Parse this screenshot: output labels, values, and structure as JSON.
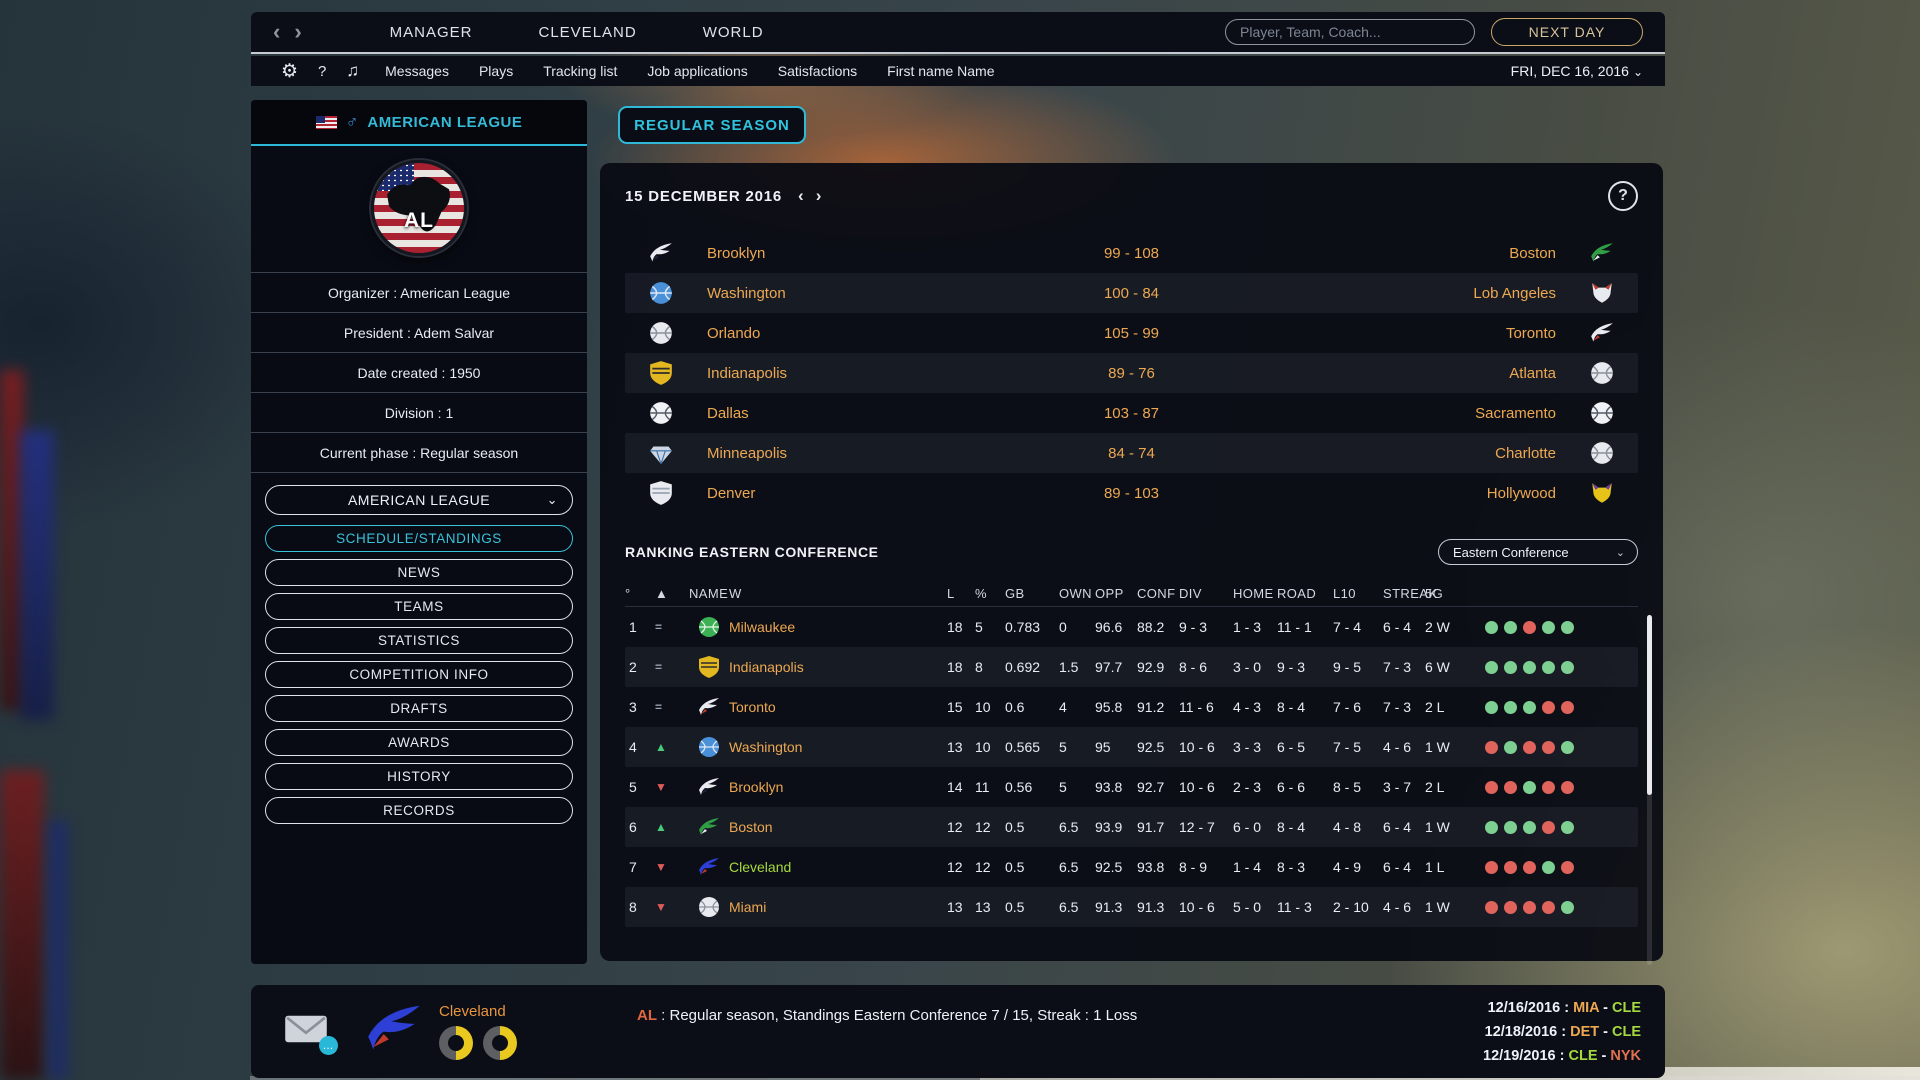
{
  "icons": {
    "back": "‹",
    "forward": "›",
    "gear": "⚙",
    "help": "?",
    "music": "♫",
    "chevron_down": "⌄",
    "male": "♂"
  },
  "colors": {
    "accent_cyan": "#39c3da",
    "orange": "#eda851",
    "green": "#a6d93e",
    "red_team": "#e2714f",
    "dot_green": "#7ecf92",
    "dot_red": "#e0635c",
    "gold": "#d8c49a"
  },
  "top_nav": {
    "items": [
      "MANAGER",
      "CLEVELAND",
      "WORLD"
    ],
    "search_placeholder": "Player, Team, Coach...",
    "next_day_label": "NEXT DAY"
  },
  "menu_bar": {
    "items": [
      "Messages",
      "Plays",
      "Tracking list",
      "Job applications",
      "Satisfactions",
      "First name Name"
    ],
    "date_label": "FRI, DEC 16, 2016"
  },
  "sidebar": {
    "league_title": "AMERICAN LEAGUE",
    "logo_text": "AL",
    "info_rows": [
      "Organizer : American League",
      "President : Adem Salvar",
      "Date created : 1950",
      "Division : 1",
      "Current phase : Regular season"
    ],
    "dropdown_value": "AMERICAN LEAGUE",
    "menu_items": [
      {
        "label": "SCHEDULE/STANDINGS",
        "active": true
      },
      {
        "label": "NEWS",
        "active": false
      },
      {
        "label": "TEAMS",
        "active": false
      },
      {
        "label": "STATISTICS",
        "active": false
      },
      {
        "label": "COMPETITION INFO",
        "active": false
      },
      {
        "label": "DRAFTS",
        "active": false
      },
      {
        "label": "AWARDS",
        "active": false
      },
      {
        "label": "HISTORY",
        "active": false
      },
      {
        "label": "RECORDS",
        "active": false
      }
    ]
  },
  "main": {
    "tab_label": "REGULAR SEASON",
    "date_header": "15 DECEMBER 2016",
    "results": [
      {
        "home": "Brooklyn",
        "score": "99 - 108",
        "away": "Boston",
        "home_logo": {
          "type": "bird",
          "c1": "#e8eaf0",
          "c2": "#1c2340"
        },
        "away_logo": {
          "type": "bird",
          "c1": "#2f9e44",
          "c2": "#e8eaf0"
        }
      },
      {
        "home": "Washington",
        "score": "100 - 84",
        "away": "Lob Angeles",
        "home_logo": {
          "type": "ball",
          "c1": "#4a90d9",
          "c2": "#dfe8f5"
        },
        "away_logo": {
          "type": "fox",
          "c1": "#e8eaf0",
          "c2": "#c0392b"
        }
      },
      {
        "home": "Orlando",
        "score": "105 - 99",
        "away": "Toronto",
        "home_logo": {
          "type": "ball",
          "c1": "#e8eaf0",
          "c2": "#8a9099"
        },
        "away_logo": {
          "type": "bird",
          "c1": "#e8eaf0",
          "c2": "#c0392b"
        }
      },
      {
        "home": "Indianapolis",
        "score": "89 - 76",
        "away": "Atlanta",
        "home_logo": {
          "type": "shield",
          "c1": "#e3b71f",
          "c2": "#2c2c2c"
        },
        "away_logo": {
          "type": "ball",
          "c1": "#e8eaf0",
          "c2": "#8a9099"
        }
      },
      {
        "home": "Dallas",
        "score": "103 - 87",
        "away": "Sacramento",
        "home_logo": {
          "type": "ball",
          "c1": "#f0f2f5",
          "c2": "#555b66"
        },
        "away_logo": {
          "type": "ball",
          "c1": "#f0f2f5",
          "c2": "#555b66"
        }
      },
      {
        "home": "Minneapolis",
        "score": "84 - 74",
        "away": "Charlotte",
        "home_logo": {
          "type": "diamond",
          "c1": "#cdd6e4",
          "c2": "#3a6ea5"
        },
        "away_logo": {
          "type": "ball",
          "c1": "#e8eaf0",
          "c2": "#8a9099"
        }
      },
      {
        "home": "Denver",
        "score": "89 - 103",
        "away": "Hollywood",
        "home_logo": {
          "type": "shield",
          "c1": "#e8eaf0",
          "c2": "#9aa4b5"
        },
        "away_logo": {
          "type": "fox",
          "c1": "#e6c319",
          "c2": "#6a3d9e"
        }
      }
    ],
    "ranking_title": "RANKING EASTERN CONFERENCE",
    "conference_dropdown": "Eastern Conference",
    "table": {
      "headers": [
        "°",
        "▲",
        "NAME",
        "W",
        "L",
        "%",
        "GB",
        "OWN",
        "OPP",
        "CONF",
        "DIV",
        "HOME",
        "ROAD",
        "L10",
        "STREAK",
        "5G"
      ],
      "rows": [
        {
          "rank": "1",
          "move": "same",
          "name": "Milwaukee",
          "name_color": "#eda851",
          "logo": {
            "type": "ball",
            "c1": "#3cb054",
            "c2": "#e8f5ea"
          },
          "stats": [
            "18",
            "5",
            "0.783",
            "0",
            "96.6",
            "88.2",
            "9 - 3",
            "1 - 3",
            "11 - 1",
            "7 - 4",
            "6 - 4",
            "2 W"
          ],
          "last5": [
            "G",
            "G",
            "R",
            "G",
            "G"
          ]
        },
        {
          "rank": "2",
          "move": "same",
          "name": "Indianapolis",
          "name_color": "#eda851",
          "logo": {
            "type": "shield",
            "c1": "#e3b71f",
            "c2": "#2c2c2c"
          },
          "stats": [
            "18",
            "8",
            "0.692",
            "1.5",
            "97.7",
            "92.9",
            "8 - 6",
            "3 - 0",
            "9 - 3",
            "9 - 5",
            "7 - 3",
            "6 W"
          ],
          "last5": [
            "G",
            "G",
            "G",
            "G",
            "G"
          ]
        },
        {
          "rank": "3",
          "move": "same",
          "name": "Toronto",
          "name_color": "#eda851",
          "logo": {
            "type": "bird",
            "c1": "#e8eaf0",
            "c2": "#c0392b"
          },
          "stats": [
            "15",
            "10",
            "0.6",
            "4",
            "95.8",
            "91.2",
            "11 - 6",
            "4 - 3",
            "8 - 4",
            "7 - 6",
            "7 - 3",
            "2 L"
          ],
          "last5": [
            "G",
            "G",
            "G",
            "R",
            "R"
          ]
        },
        {
          "rank": "4",
          "move": "up",
          "name": "Washington",
          "name_color": "#eda851",
          "logo": {
            "type": "ball",
            "c1": "#4a90d9",
            "c2": "#dfe8f5"
          },
          "stats": [
            "13",
            "10",
            "0.565",
            "5",
            "95",
            "92.5",
            "10 - 6",
            "3 - 3",
            "6 - 5",
            "7 - 5",
            "4 - 6",
            "1 W"
          ],
          "last5": [
            "R",
            "G",
            "R",
            "R",
            "G"
          ]
        },
        {
          "rank": "5",
          "move": "down",
          "name": "Brooklyn",
          "name_color": "#eda851",
          "logo": {
            "type": "bird",
            "c1": "#e8eaf0",
            "c2": "#1c2340"
          },
          "stats": [
            "14",
            "11",
            "0.56",
            "5",
            "93.8",
            "92.7",
            "10 - 6",
            "2 - 3",
            "6 - 6",
            "8 - 5",
            "3 - 7",
            "2 L"
          ],
          "last5": [
            "R",
            "R",
            "G",
            "R",
            "R"
          ]
        },
        {
          "rank": "6",
          "move": "up",
          "name": "Boston",
          "name_color": "#eda851",
          "logo": {
            "type": "bird",
            "c1": "#2f9e44",
            "c2": "#e8eaf0"
          },
          "stats": [
            "12",
            "12",
            "0.5",
            "6.5",
            "93.9",
            "91.7",
            "12 - 7",
            "6 - 0",
            "8 - 4",
            "4 - 8",
            "6 - 4",
            "1 W"
          ],
          "last5": [
            "G",
            "G",
            "G",
            "R",
            "G"
          ]
        },
        {
          "rank": "7",
          "move": "down",
          "name": "Cleveland",
          "name_color": "#a6d93e",
          "logo": {
            "type": "bird",
            "c1": "#2d3fd4",
            "c2": "#c0392b"
          },
          "stats": [
            "12",
            "12",
            "0.5",
            "6.5",
            "92.5",
            "93.8",
            "8 - 9",
            "1 - 4",
            "8 - 3",
            "4 - 9",
            "6 - 4",
            "1 L"
          ],
          "last5": [
            "R",
            "R",
            "R",
            "G",
            "R"
          ]
        },
        {
          "rank": "8",
          "move": "down",
          "name": "Miami",
          "name_color": "#eda851",
          "logo": {
            "type": "ball",
            "c1": "#e8eaf0",
            "c2": "#8a9099"
          },
          "stats": [
            "13",
            "13",
            "0.5",
            "6.5",
            "91.3",
            "91.3",
            "10 - 6",
            "5 - 0",
            "11 - 3",
            "2 - 10",
            "4 - 6",
            "1 W"
          ],
          "last5": [
            "R",
            "R",
            "R",
            "R",
            "G"
          ]
        }
      ]
    }
  },
  "bottom_bar": {
    "team_name": "Cleveland",
    "status_prefix": "AL",
    "status_text": " : Regular season, Standings Eastern Conference 7 / 15, Streak : 1 Loss",
    "schedule": [
      {
        "date": "12/16/2016",
        "left": "MIA",
        "left_color": "#eda851",
        "right": "CLE",
        "right_color": "#a6d93e"
      },
      {
        "date": "12/18/2016",
        "left": "DET",
        "left_color": "#eda851",
        "right": "CLE",
        "right_color": "#a6d93e"
      },
      {
        "date": "12/19/2016",
        "left": "CLE",
        "left_color": "#a6d93e",
        "right": "NYK",
        "right_color": "#e2714f"
      }
    ]
  }
}
